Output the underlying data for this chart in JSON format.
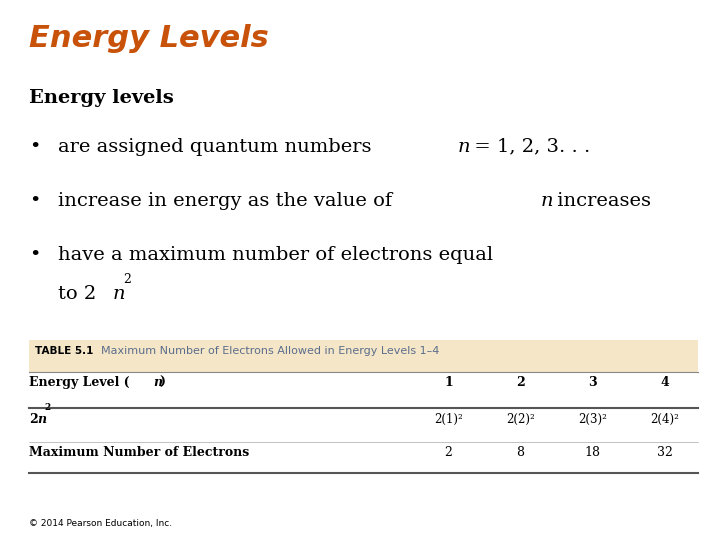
{
  "title": "Energy Levels",
  "title_color": "#C8520A",
  "body_heading": "Energy levels",
  "bullet1_normal": "are assigned quantum numbers ",
  "bullet1_italic": "n",
  "bullet1_end": " = 1, 2, 3. . .",
  "bullet2_normal1": "increase in energy as the value of ",
  "bullet2_italic": "n",
  "bullet2_normal2": " increases",
  "bullet3_line1": "have a maximum number of electrons equal",
  "bullet3_line2_normal": "to 2",
  "bullet3_line2_italic": "n",
  "bullet3_line2_super": "2",
  "table_header_bg": "#F5E6C8",
  "table_label": "TABLE 5.1",
  "table_title": "  Maximum Number of Electrons Allowed in Energy Levels 1–4",
  "table_row1_values": [
    "2(1)²",
    "2(2)²",
    "2(3)²",
    "2(4)²"
  ],
  "table_row2_label": "Maximum Number of Electrons",
  "table_row2_values": [
    "2",
    "8",
    "18",
    "32"
  ],
  "footer": "© 2014 Pearson Education, Inc.",
  "bg_color": "#ffffff"
}
